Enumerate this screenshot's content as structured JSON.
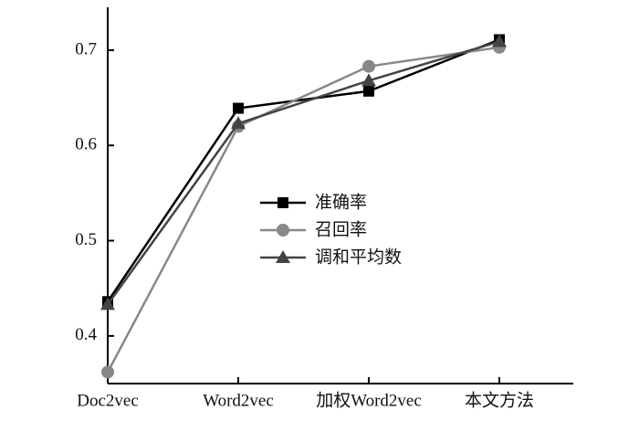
{
  "chart_data": {
    "type": "line",
    "categories": [
      "Doc2vec",
      "Word2vec",
      "加权Word2vec",
      "本文方法"
    ],
    "series": [
      {
        "name": "准确率",
        "color": "#000000",
        "marker": "square",
        "values": [
          0.436,
          0.639,
          0.657,
          0.711
        ]
      },
      {
        "name": "召回率",
        "color": "#888888",
        "marker": "circle",
        "values": [
          0.362,
          0.62,
          0.683,
          0.703
        ]
      },
      {
        "name": "调和平均数",
        "color": "#444444",
        "marker": "triangle",
        "values": [
          0.433,
          0.623,
          0.668,
          0.709
        ]
      }
    ],
    "ylim": [
      0.35,
      0.745
    ],
    "yticks": [
      0.4,
      0.5,
      0.6,
      0.7
    ]
  }
}
